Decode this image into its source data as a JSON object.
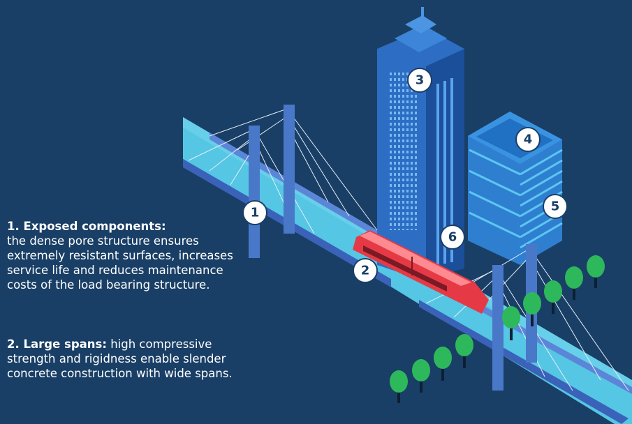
{
  "items": [
    {
      "title": "1. Exposed components:",
      "text": "the dense pore structure ensures extremely resistant surfaces, increases service life and reduces maintenance costs of the load bearing structure."
    },
    {
      "title": "2. Large spans:",
      "text": "high compressive strength and rigidness enable slender concrete construction with wide spans."
    }
  ],
  "markers": [
    "1",
    "2",
    "3",
    "4",
    "5",
    "6"
  ]
}
